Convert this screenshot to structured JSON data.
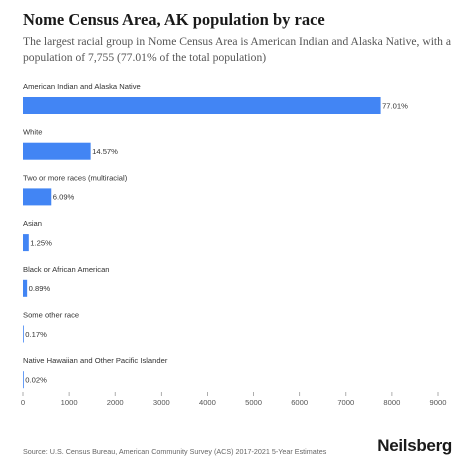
{
  "header": {
    "title": "Nome Census Area, AK population by race",
    "subtitle": "The largest racial group in Nome Census Area is American Indian and Alaska Native, with a population of 7,755 (77.01% of the total population)"
  },
  "footer": {
    "source": "Source: U.S. Census Bureau, American Community Survey (ACS) 2017-2021 5-Year Estimates",
    "brand": "Neilsberg"
  },
  "colors": {
    "bar": "#4285f4"
  },
  "chart_data": {
    "type": "bar",
    "orientation": "horizontal",
    "categories": [
      "American Indian and Alaska Native",
      "White",
      "Two or more races (multiracial)",
      "Asian",
      "Black or African American",
      "Some other race",
      "Native Hawaiian and Other Pacific Islander"
    ],
    "values": [
      7755,
      1467,
      613,
      126,
      90,
      17,
      2
    ],
    "value_labels": [
      "77.01%",
      "14.57%",
      "6.09%",
      "1.25%",
      "0.89%",
      "0.17%",
      "0.02%"
    ],
    "xlim": [
      0,
      9000
    ],
    "xticks": [
      0,
      1000,
      2000,
      3000,
      4000,
      5000,
      6000,
      7000,
      8000,
      9000
    ],
    "grid": false,
    "legend": "none"
  }
}
